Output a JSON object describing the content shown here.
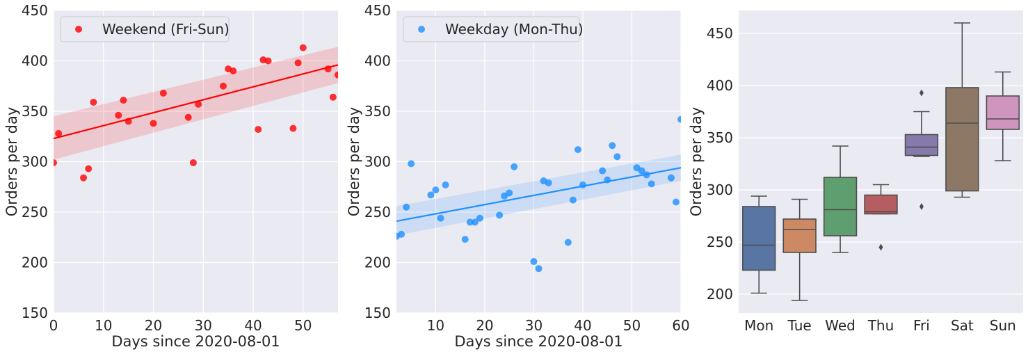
{
  "chart_data": [
    {
      "type": "scatter",
      "xlabel": "Days since 2020-08-01",
      "ylabel": "Orders per day",
      "xlim": [
        0,
        57
      ],
      "ylim": [
        150,
        450
      ],
      "xticks": [
        0,
        10,
        20,
        30,
        40,
        50
      ],
      "yticks": [
        150,
        200,
        250,
        300,
        350,
        400,
        450
      ],
      "grid": true,
      "legend_position": "top-left",
      "series": [
        {
          "name": "Weekend (Fri-Sun)",
          "color": "#ff0000",
          "points": [
            [
              0,
              299
            ],
            [
              1,
              328
            ],
            [
              6,
              284
            ],
            [
              7,
              293
            ],
            [
              8,
              359
            ],
            [
              13,
              346
            ],
            [
              14,
              361
            ],
            [
              15,
              340
            ],
            [
              20,
              338
            ],
            [
              22,
              368
            ],
            [
              27,
              344
            ],
            [
              28,
              299
            ],
            [
              29,
              357
            ],
            [
              34,
              375
            ],
            [
              35,
              392
            ],
            [
              36,
              390
            ],
            [
              41,
              332
            ],
            [
              42,
              401
            ],
            [
              43,
              400
            ],
            [
              48,
              333
            ],
            [
              49,
              398
            ],
            [
              50,
              413
            ],
            [
              55,
              392
            ],
            [
              56,
              364
            ],
            [
              57,
              386
            ]
          ]
        }
      ],
      "regression": {
        "x": [
          0,
          57
        ],
        "y": [
          323,
          396
        ],
        "ci_lower": [
          302,
          378
        ],
        "ci_upper": [
          345,
          414
        ]
      }
    },
    {
      "type": "scatter",
      "xlabel": "Days since 2020-08-01",
      "ylabel": "Orders per day",
      "xlim": [
        2,
        60
      ],
      "ylim": [
        150,
        450
      ],
      "xticks": [
        10,
        20,
        30,
        40,
        50,
        60
      ],
      "yticks": [
        150,
        200,
        250,
        300,
        350,
        400,
        450
      ],
      "grid": true,
      "legend_position": "top-left",
      "series": [
        {
          "name": "Weekday (Mon-Thu)",
          "color": "#1e90ff",
          "points": [
            [
              2,
              226
            ],
            [
              3,
              228
            ],
            [
              4,
              255
            ],
            [
              5,
              298
            ],
            [
              9,
              267
            ],
            [
              10,
              272
            ],
            [
              11,
              244
            ],
            [
              12,
              277
            ],
            [
              16,
              223
            ],
            [
              17,
              240
            ],
            [
              18,
              240
            ],
            [
              19,
              244
            ],
            [
              23,
              247
            ],
            [
              24,
              266
            ],
            [
              25,
              269
            ],
            [
              26,
              295
            ],
            [
              30,
              201
            ],
            [
              31,
              194
            ],
            [
              32,
              281
            ],
            [
              33,
              279
            ],
            [
              37,
              220
            ],
            [
              38,
              262
            ],
            [
              39,
              312
            ],
            [
              40,
              277
            ],
            [
              44,
              291
            ],
            [
              45,
              282
            ],
            [
              46,
              316
            ],
            [
              47,
              305
            ],
            [
              51,
              294
            ],
            [
              52,
              291
            ],
            [
              53,
              287
            ],
            [
              54,
              278
            ],
            [
              58,
              284
            ],
            [
              59,
              260
            ],
            [
              60,
              342
            ]
          ]
        }
      ],
      "regression": {
        "x": [
          2,
          60
        ],
        "y": [
          241,
          294
        ],
        "ci_lower": [
          227,
          281
        ],
        "ci_upper": [
          256,
          307
        ]
      }
    },
    {
      "type": "box",
      "ylabel": "Orders per day",
      "ylim": [
        182,
        472
      ],
      "yticks": [
        200,
        250,
        300,
        350,
        400,
        450
      ],
      "grid": true,
      "categories": [
        "Mon",
        "Tue",
        "Wed",
        "Thu",
        "Fri",
        "Sat",
        "Sun"
      ],
      "colors": [
        "#5975a4",
        "#cc8963",
        "#5f9e6e",
        "#b55d60",
        "#857aab",
        "#8d7866",
        "#d095bf"
      ],
      "boxes": [
        {
          "whisker_low": 201,
          "q1": 223,
          "median": 247,
          "q3": 284,
          "whisker_high": 294,
          "outliers": []
        },
        {
          "whisker_low": 194,
          "q1": 240,
          "median": 262,
          "q3": 272,
          "whisker_high": 291,
          "outliers": []
        },
        {
          "whisker_low": 240,
          "q1": 256,
          "median": 281,
          "q3": 312,
          "whisker_high": 342,
          "outliers": []
        },
        {
          "whisker_low": 277,
          "q1": 277,
          "median": 279,
          "q3": 295,
          "whisker_high": 305,
          "outliers": [
            245
          ]
        },
        {
          "whisker_low": 332,
          "q1": 333,
          "median": 341,
          "q3": 353,
          "whisker_high": 375,
          "outliers": [
            393,
            284
          ]
        },
        {
          "whisker_low": 293,
          "q1": 299,
          "median": 364,
          "q3": 398,
          "whisker_high": 460,
          "outliers": []
        },
        {
          "whisker_low": 328,
          "q1": 358,
          "median": 368,
          "q3": 390,
          "whisker_high": 413,
          "outliers": []
        }
      ]
    }
  ]
}
